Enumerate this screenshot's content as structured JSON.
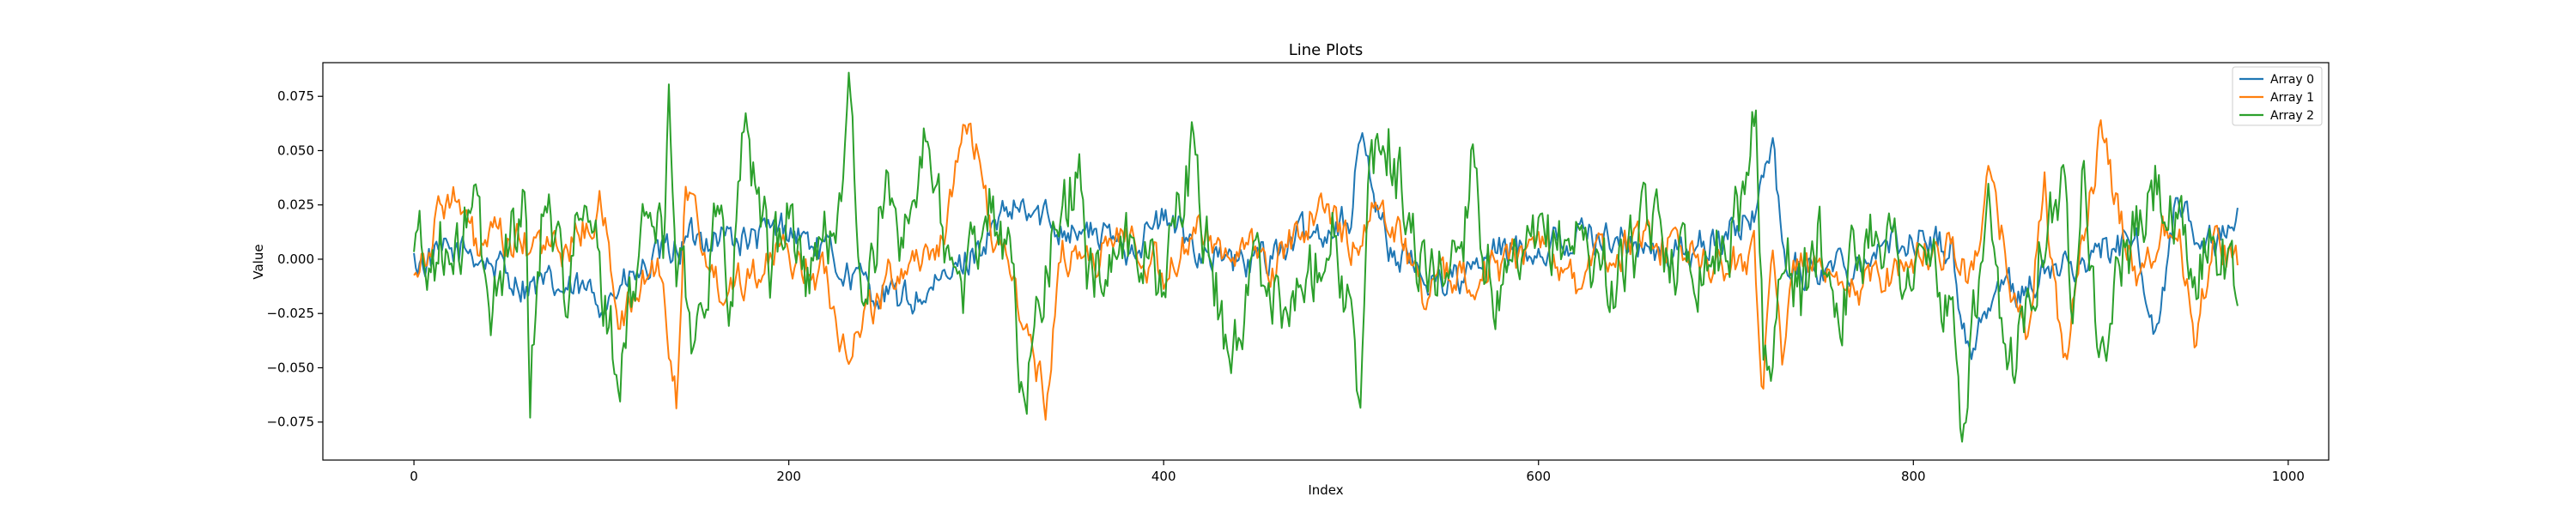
{
  "chart_data": {
    "type": "line",
    "title": "Line Plots",
    "xlabel": "Index",
    "ylabel": "Value",
    "xlim": [
      -48.6,
      1021.6
    ],
    "ylim": [
      -0.0925,
      0.0905
    ],
    "xticks": [
      0,
      200,
      400,
      600,
      800,
      1000
    ],
    "xtick_labels": [
      "0",
      "200",
      "400",
      "600",
      "800",
      "1000"
    ],
    "yticks": [
      -0.075,
      -0.05,
      -0.025,
      0.0,
      0.025,
      0.05,
      0.075
    ],
    "ytick_labels": [
      "−0.075",
      "−0.050",
      "−0.025",
      "0.000",
      "0.025",
      "0.050",
      "0.075"
    ],
    "grid": false,
    "legend_position": "top-right",
    "n_points": 974,
    "series": [
      {
        "name": "Array 0",
        "color": "#1f77b4",
        "x": [
          0,
          30,
          60,
          90,
          100,
          120,
          140,
          160,
          180,
          200,
          220,
          240,
          260,
          280,
          300,
          320,
          340,
          360,
          380,
          400,
          420,
          440,
          460,
          480,
          500,
          505,
          520,
          540,
          560,
          580,
          600,
          620,
          640,
          660,
          680,
          700,
          710,
          720,
          725,
          730,
          740,
          760,
          780,
          800,
          820,
          830,
          840,
          860,
          880,
          900,
          920,
          930,
          940,
          960,
          973
        ],
        "values": [
          -0.002,
          0.004,
          -0.012,
          -0.016,
          -0.018,
          -0.008,
          0.006,
          0.012,
          0.008,
          0.015,
          0.002,
          -0.012,
          -0.02,
          -0.014,
          0.005,
          0.022,
          0.018,
          0.012,
          0.006,
          0.018,
          0.005,
          -0.004,
          0.004,
          0.012,
          0.02,
          0.058,
          0.005,
          -0.008,
          -0.01,
          0.004,
          0.006,
          0.01,
          0.012,
          0.002,
          0.004,
          0.01,
          0.018,
          0.03,
          0.062,
          0.002,
          -0.006,
          -0.003,
          0.004,
          0.01,
          0.006,
          -0.045,
          -0.018,
          -0.012,
          -0.004,
          0.004,
          0.006,
          -0.035,
          0.024,
          0.005,
          0.015
        ]
      },
      {
        "name": "Array 1",
        "color": "#ff7f0e",
        "x": [
          0,
          10,
          15,
          20,
          25,
          35,
          40,
          60,
          80,
          100,
          110,
          130,
          140,
          145,
          160,
          180,
          200,
          220,
          230,
          260,
          280,
          297,
          310,
          320,
          337,
          345,
          360,
          380,
          400,
          420,
          440,
          460,
          480,
          500,
          520,
          540,
          560,
          580,
          600,
          620,
          640,
          660,
          680,
          700,
          715,
          720,
          725,
          730,
          740,
          760,
          780,
          800,
          820,
          830,
          840,
          860,
          870,
          880,
          890,
          900,
          910,
          920,
          940,
          950,
          960,
          973
        ],
        "values": [
          -0.002,
          0.01,
          0.026,
          0.032,
          0.02,
          0.002,
          0.008,
          0.006,
          0.004,
          0.024,
          -0.03,
          0.0,
          -0.063,
          0.04,
          -0.012,
          -0.004,
          0.002,
          -0.008,
          -0.04,
          -0.002,
          0.006,
          0.064,
          0.008,
          -0.012,
          -0.066,
          0.004,
          0.0,
          0.01,
          -0.006,
          0.012,
          0.004,
          -0.004,
          0.024,
          0.01,
          0.024,
          -0.018,
          -0.004,
          -0.006,
          0.01,
          -0.01,
          0.004,
          0.01,
          0.002,
          -0.006,
          0.006,
          -0.06,
          0.01,
          -0.04,
          0.004,
          -0.02,
          -0.008,
          0.0,
          0.008,
          -0.012,
          0.036,
          -0.038,
          0.034,
          -0.056,
          0.01,
          0.056,
          0.02,
          -0.008,
          0.024,
          -0.036,
          0.012,
          -0.004
        ]
      },
      {
        "name": "Array 2",
        "color": "#2ca02c",
        "x": [
          0,
          2,
          5,
          15,
          20,
          25,
          32,
          35,
          40,
          50,
          60,
          62,
          70,
          80,
          90,
          100,
          110,
          125,
          133,
          136,
          140,
          150,
          160,
          170,
          175,
          190,
          200,
          210,
          225,
          232,
          240,
          250,
          260,
          275,
          290,
          300,
          305,
          320,
          325,
          340,
          355,
          360,
          380,
          400,
          415,
          420,
          435,
          450,
          470,
          490,
          500,
          505,
          510,
          520,
          540,
          560,
          565,
          570,
          580,
          600,
          620,
          640,
          660,
          680,
          700,
          710,
          716,
          720,
          725,
          730,
          740,
          750,
          760,
          780,
          800,
          810,
          820,
          827,
          830,
          840,
          850,
          860,
          870,
          880,
          885,
          890,
          900,
          910,
          920,
          930,
          950,
          960,
          973
        ],
        "values": [
          0.004,
          0.018,
          -0.006,
          0.008,
          -0.012,
          0.002,
          0.042,
          0.01,
          -0.03,
          0.01,
          0.024,
          -0.056,
          0.039,
          -0.01,
          0.02,
          -0.008,
          -0.058,
          0.03,
          0.002,
          0.079,
          0.006,
          -0.04,
          0.02,
          -0.018,
          0.067,
          0.0,
          0.02,
          -0.01,
          0.018,
          0.073,
          -0.032,
          0.028,
          0.015,
          0.055,
          -0.022,
          0.0,
          0.04,
          -0.01,
          -0.07,
          0.01,
          0.04,
          -0.01,
          0.01,
          -0.008,
          0.048,
          0.02,
          -0.046,
          -0.002,
          -0.024,
          0.02,
          -0.03,
          -0.084,
          0.04,
          0.054,
          -0.012,
          0.01,
          0.064,
          0.006,
          -0.022,
          0.004,
          0.012,
          -0.01,
          0.014,
          0.0,
          0.006,
          0.03,
          0.082,
          -0.046,
          -0.058,
          0.01,
          -0.02,
          0.012,
          -0.02,
          0.02,
          -0.01,
          0.0,
          -0.034,
          -0.08,
          -0.04,
          0.01,
          -0.06,
          -0.016,
          0.02,
          0.03,
          -0.02,
          0.06,
          -0.05,
          0.0,
          0.01,
          0.035,
          -0.012,
          0.016,
          -0.018
        ]
      }
    ]
  }
}
